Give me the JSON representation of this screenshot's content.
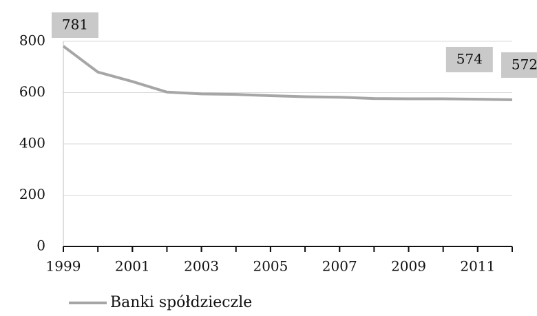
{
  "chart_data": {
    "type": "line",
    "x": [
      1999,
      2000,
      2001,
      2002,
      2003,
      2004,
      2005,
      2006,
      2007,
      2008,
      2009,
      2010,
      2011,
      2012
    ],
    "series": [
      {
        "name": "Banki spółdzieczle",
        "color": "#a6a6a6",
        "values": [
          781,
          680,
          643,
          602,
          595,
          593,
          588,
          584,
          582,
          577,
          576,
          576,
          574,
          572
        ],
        "value_labels": [
          "781",
          null,
          null,
          null,
          null,
          null,
          null,
          null,
          null,
          null,
          null,
          null,
          "574",
          "572"
        ]
      }
    ],
    "xlim": [
      1999,
      2012
    ],
    "xticks": [
      1999,
      2001,
      2003,
      2005,
      2007,
      2009,
      2011
    ],
    "ylim": [
      0,
      800
    ],
    "yticks": [
      0,
      200,
      400,
      600,
      800
    ],
    "grid": true
  }
}
